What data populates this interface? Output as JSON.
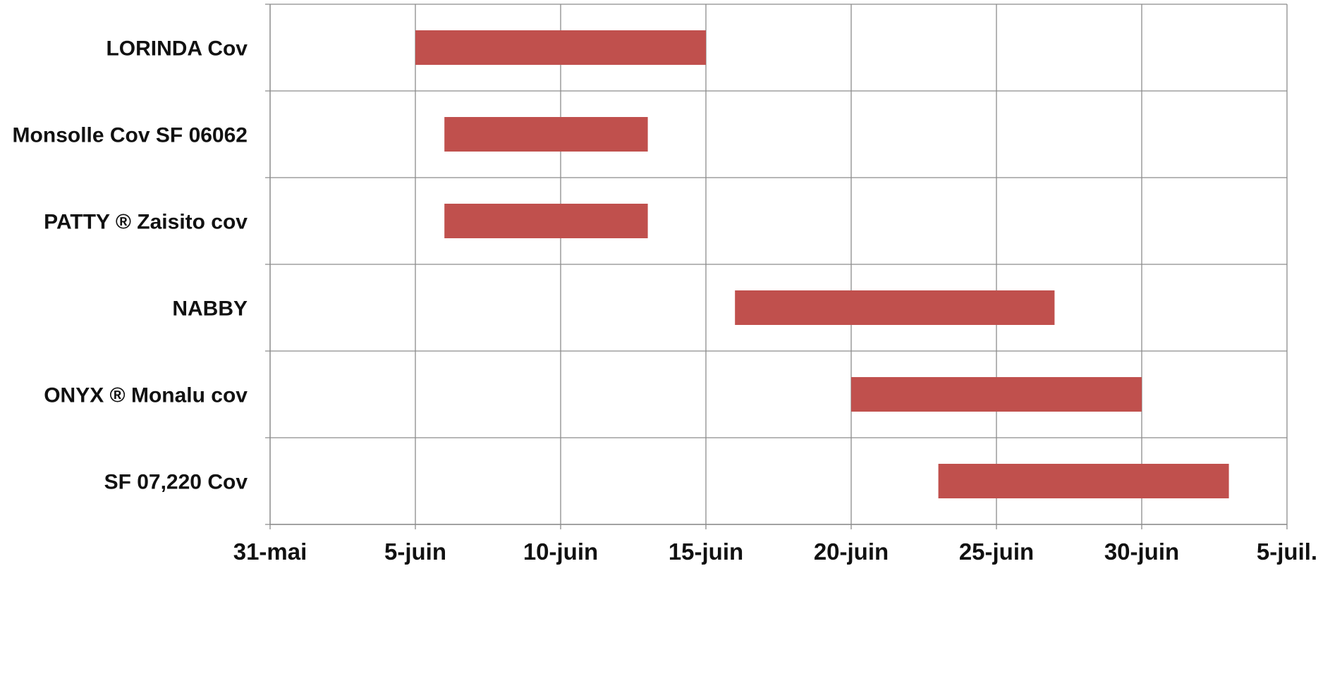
{
  "chart_data": {
    "type": "bar",
    "orientation": "horizontal-range",
    "title": "",
    "xlabel": "",
    "ylabel": "",
    "grid": true,
    "legend": "none",
    "bar_color": "#C0504D",
    "x_range": [
      "31-mai",
      "5-juil."
    ],
    "x_ticks": [
      "31-mai",
      "5-juin",
      "10-juin",
      "15-juin",
      "20-juin",
      "25-juin",
      "30-juin",
      "5-juil."
    ],
    "categories": [
      {
        "label": "LORINDA Cov"
      },
      {
        "label": "Monsolle Cov SF 06062"
      },
      {
        "label": "PATTY ® Zaisito cov"
      },
      {
        "label": "NABBY"
      },
      {
        "label": "ONYX ® Monalu cov"
      },
      {
        "label": "SF 07,220 Cov"
      }
    ],
    "ranges": [
      {
        "start": "5-juin",
        "end": "15-juin"
      },
      {
        "start": "6-juin",
        "end": "13-juin"
      },
      {
        "start": "6-juin",
        "end": "13-juin"
      },
      {
        "start": "16-juin",
        "end": "27-juin"
      },
      {
        "start": "20-juin",
        "end": "30-juin"
      },
      {
        "start": "23-juin",
        "end": "3-juil."
      }
    ]
  }
}
